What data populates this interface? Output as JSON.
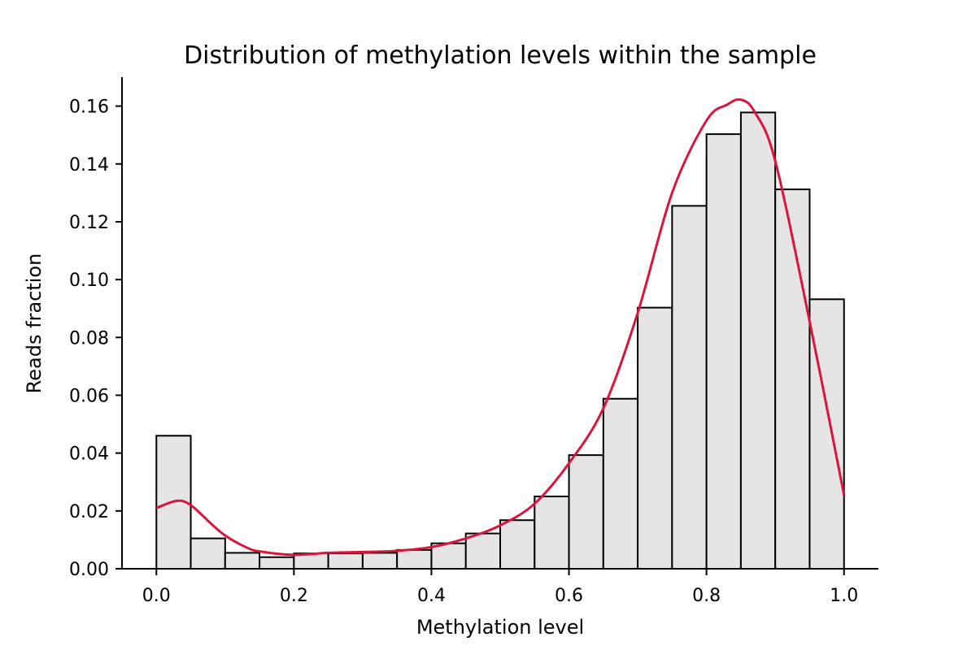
{
  "chart_data": {
    "type": "bar",
    "title": "Distribution of methylation levels within the sample",
    "xlabel": "Methylation level",
    "ylabel": "Reads fraction",
    "xlim": [
      -0.05,
      1.05
    ],
    "ylim": [
      0,
      0.17
    ],
    "xticks": [
      0.0,
      0.2,
      0.4,
      0.6,
      0.8,
      1.0
    ],
    "xtick_labels": [
      "0.0",
      "0.2",
      "0.4",
      "0.6",
      "0.8",
      "1.0"
    ],
    "yticks": [
      0.0,
      0.02,
      0.04,
      0.06,
      0.08,
      0.1,
      0.12,
      0.14,
      0.16
    ],
    "ytick_labels": [
      "0.00",
      "0.02",
      "0.04",
      "0.06",
      "0.08",
      "0.10",
      "0.12",
      "0.14",
      "0.16"
    ],
    "bin_edges": [
      0.0,
      0.05,
      0.1,
      0.15,
      0.2,
      0.25,
      0.3,
      0.35,
      0.4,
      0.45,
      0.5,
      0.55,
      0.6,
      0.65,
      0.7,
      0.75,
      0.8,
      0.85,
      0.9,
      0.95,
      1.0
    ],
    "values": [
      0.046,
      0.0105,
      0.0055,
      0.004,
      0.0053,
      0.0053,
      0.0055,
      0.0065,
      0.0088,
      0.0122,
      0.0168,
      0.025,
      0.0393,
      0.0588,
      0.0903,
      0.1255,
      0.1503,
      0.1578,
      0.1312,
      0.0932
    ],
    "bar_color": "#e5e5e5",
    "bar_edge_color": "#000000",
    "grid": false,
    "kde": {
      "color": "#dc143c",
      "x": [
        0.0,
        0.03,
        0.05,
        0.08,
        0.1,
        0.13,
        0.15,
        0.2,
        0.25,
        0.3,
        0.35,
        0.4,
        0.45,
        0.5,
        0.55,
        0.6,
        0.65,
        0.7,
        0.75,
        0.8,
        0.83,
        0.85,
        0.87,
        0.9,
        0.95,
        1.0
      ],
      "y": [
        0.021,
        0.0235,
        0.022,
        0.0155,
        0.0115,
        0.0075,
        0.006,
        0.0048,
        0.0055,
        0.0058,
        0.0062,
        0.0075,
        0.0105,
        0.015,
        0.0225,
        0.0365,
        0.0555,
        0.0885,
        0.13,
        0.155,
        0.1605,
        0.1622,
        0.158,
        0.141,
        0.0855,
        0.0255
      ]
    }
  }
}
